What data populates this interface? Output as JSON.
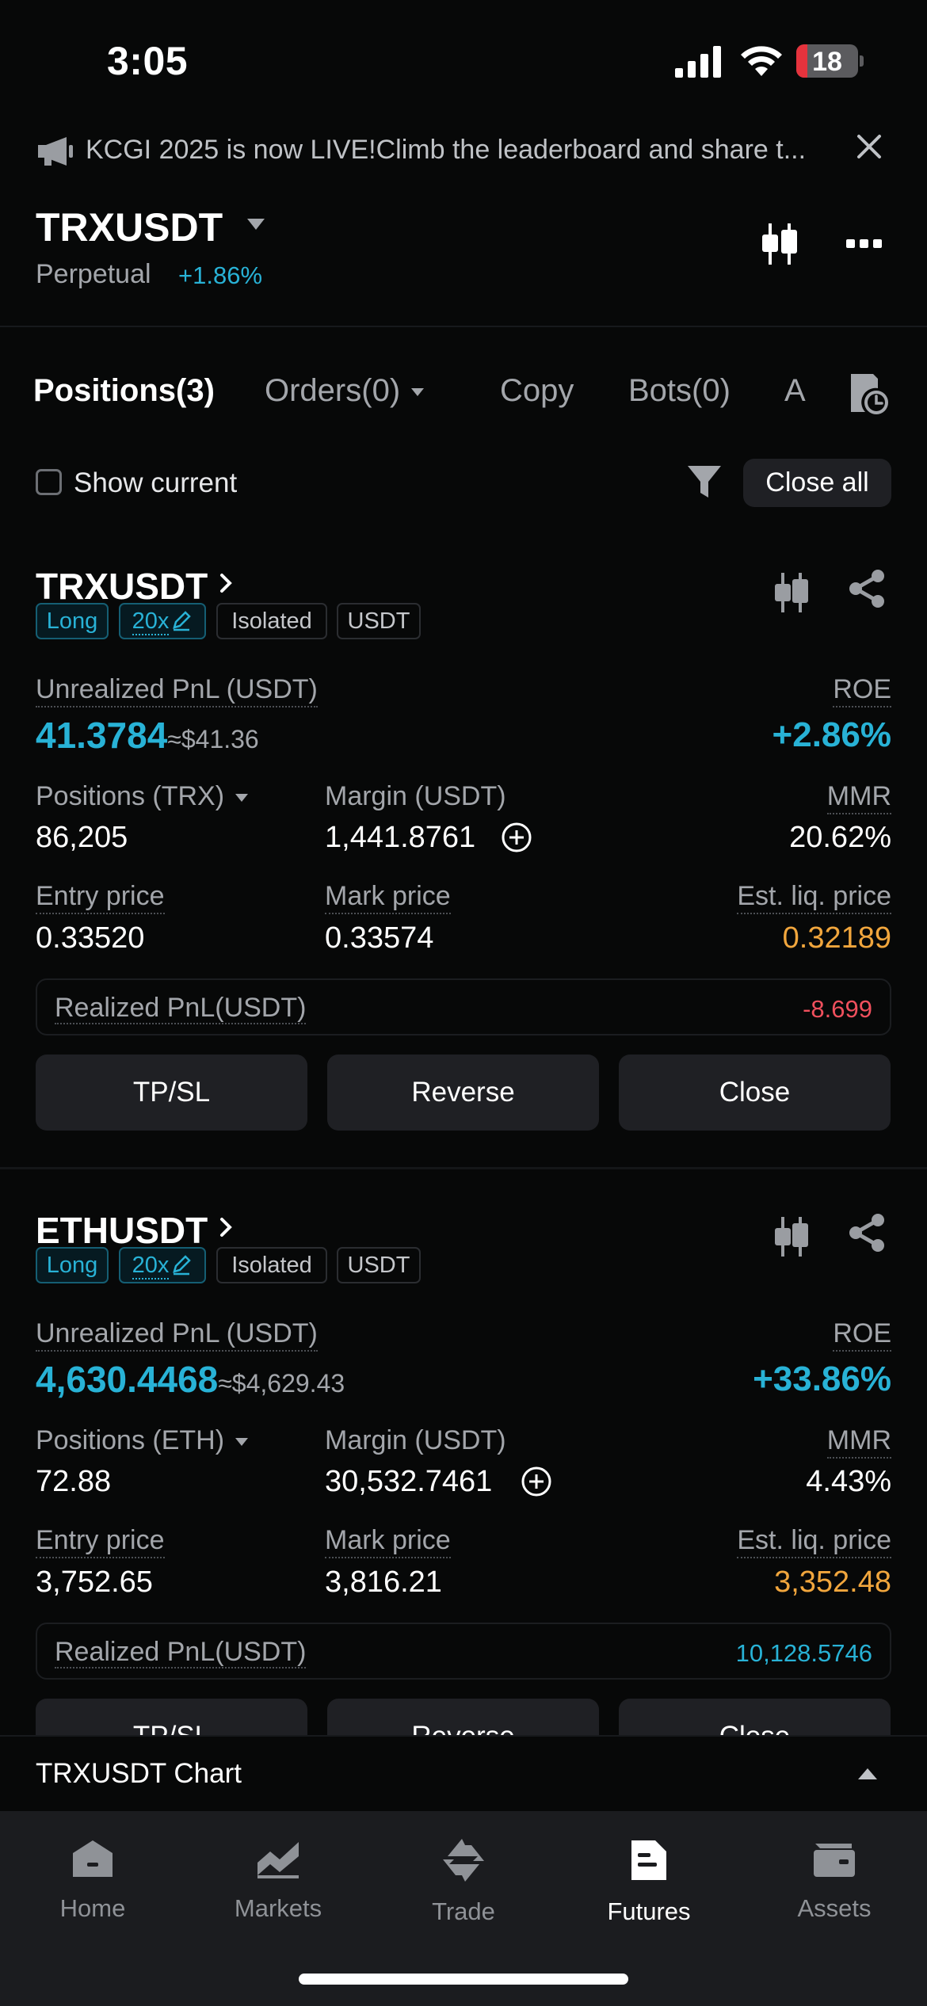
{
  "status_bar": {
    "time": "3:05",
    "battery": "18",
    "battery_level": 0.18
  },
  "announcement": {
    "text": "KCGI 2025 is now LIVE!Climb the leaderboard and share t..."
  },
  "header": {
    "symbol": "TRXUSDT",
    "contract_type": "Perpetual",
    "change": "+1.86%"
  },
  "tabs": [
    {
      "label": "Positions(3)",
      "active": true
    },
    {
      "label": "Orders(0)"
    },
    {
      "label": "Copy"
    },
    {
      "label": "Bots(0)"
    },
    {
      "label": "A"
    }
  ],
  "filter": {
    "show_current": "Show current",
    "close_all": "Close all"
  },
  "labels": {
    "unrealized_pnl": "Unrealized PnL (USDT)",
    "roe": "ROE",
    "margin": "Margin (USDT)",
    "mmr": "MMR",
    "entry_price": "Entry price",
    "mark_price": "Mark price",
    "est_liq_price": "Est. liq. price",
    "realized_pnl": "Realized PnL(USDT)",
    "tp_sl": "TP/SL",
    "reverse": "Reverse",
    "close": "Close"
  },
  "positions": [
    {
      "symbol": "TRXUSDT",
      "side": "Long",
      "leverage": "20x",
      "margin_mode": "Isolated",
      "settle": "USDT",
      "unrealized_pnl": "41.3784",
      "unrealized_pnl_usd": "≈$41.36",
      "roe": "+2.86%",
      "positions_label": "Positions (TRX)",
      "positions": "86,205",
      "margin": "1,441.8761",
      "mmr": "20.62%",
      "entry_price": "0.33520",
      "mark_price": "0.33574",
      "est_liq_price": "0.32189",
      "realized_pnl": "-8.699"
    },
    {
      "symbol": "ETHUSDT",
      "side": "Long",
      "leverage": "20x",
      "margin_mode": "Isolated",
      "settle": "USDT",
      "unrealized_pnl": "4,630.4468",
      "unrealized_pnl_usd": "≈$4,629.43",
      "roe": "+33.86%",
      "positions_label": "Positions (ETH)",
      "positions": "72.88",
      "margin": "30,532.7461",
      "mmr": "4.43%",
      "entry_price": "3,752.65",
      "mark_price": "3,816.21",
      "est_liq_price": "3,352.48",
      "realized_pnl": "10,128.5746"
    }
  ],
  "chart_bar": {
    "label": "TRXUSDT  Chart"
  },
  "tabbar": [
    {
      "label": "Home",
      "icon": "home-icon"
    },
    {
      "label": "Markets",
      "icon": "markets-icon"
    },
    {
      "label": "Trade",
      "icon": "trade-icon"
    },
    {
      "label": "Futures",
      "icon": "futures-icon",
      "active": true
    },
    {
      "label": "Assets",
      "icon": "assets-icon"
    }
  ],
  "colors": {
    "accent": "#28b2d6",
    "warning": "#f1a63d",
    "negative": "#f0505d",
    "background": "#070808",
    "surface": "#1f2024"
  }
}
